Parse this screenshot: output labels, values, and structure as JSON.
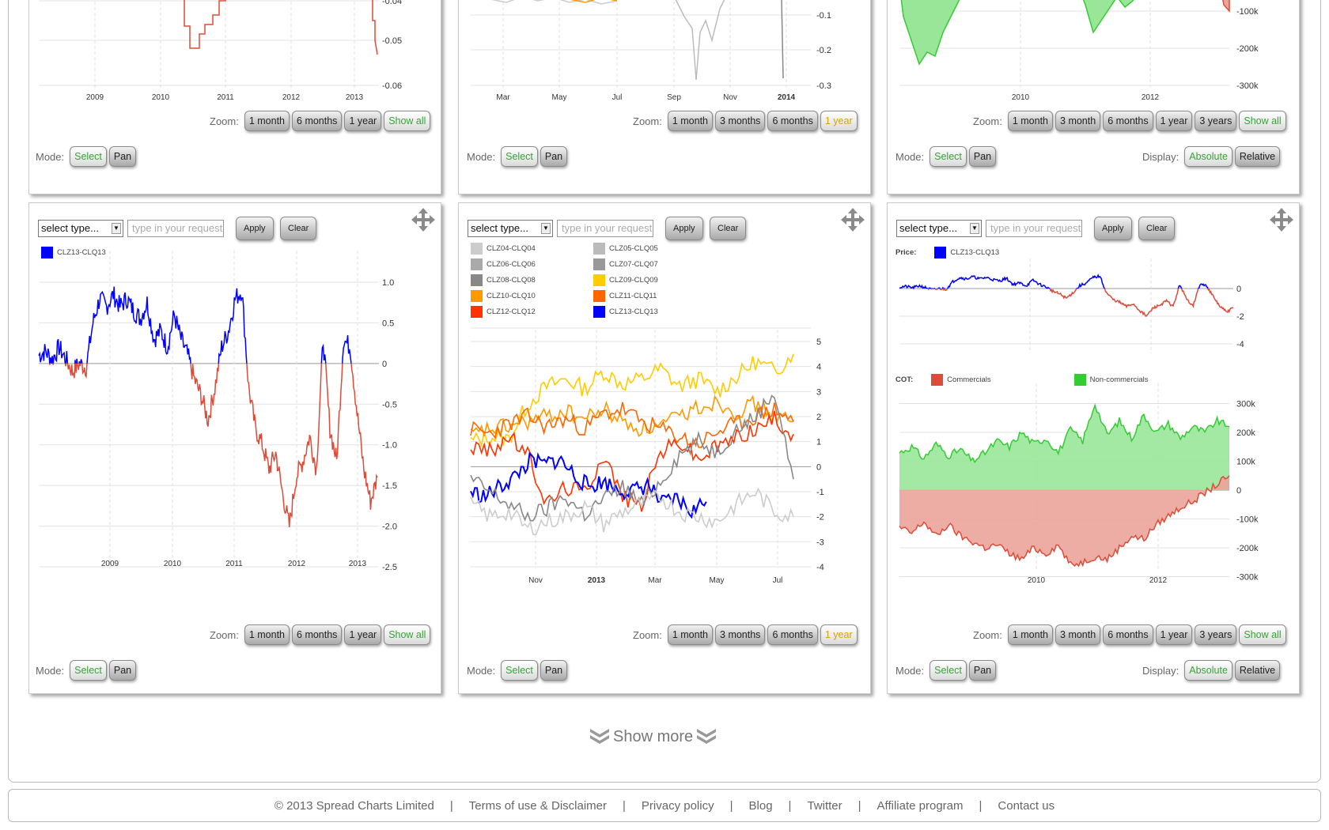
{
  "zoom_label": "Zoom:",
  "mode_label": "Mode:",
  "display_label": "Display:",
  "mode_buttons": [
    "Select",
    "Pan"
  ],
  "display_buttons": [
    "Absolute",
    "Relative"
  ],
  "zoom_sets": {
    "a": [
      "1 month",
      "6 months",
      "1 year",
      "Show all"
    ],
    "b": [
      "1 month",
      "3 months",
      "6 months",
      "1 year"
    ],
    "c": [
      "1 month",
      "3 month",
      "6 months",
      "1 year",
      "3 years",
      "Show all"
    ]
  },
  "select_type": "select type...",
  "input_placeholder": "type in your request",
  "apply_label": "Apply",
  "clear_label": "Clear",
  "top_row": {
    "left_y_ticks": [
      "-0.04",
      "-0.05",
      "-0.06"
    ],
    "left_x_ticks": [
      "2009",
      "2010",
      "2011",
      "2012",
      "2013"
    ],
    "mid_y_ticks": [
      "-0.1",
      "-0.2",
      "-0.3"
    ],
    "mid_x_ticks": [
      "Mar",
      "May",
      "Jul",
      "Sep",
      "Nov",
      "2014"
    ],
    "right_y_ticks": [
      "-100k",
      "-200k",
      "-300k"
    ],
    "right_x_ticks": [
      "2010",
      "2012"
    ]
  },
  "chart_left": {
    "legend": [
      "CLZ13-CLQ13"
    ],
    "y_ticks": [
      "1.0",
      "0.5",
      "0",
      "-0.5",
      "-1.0",
      "-1.5",
      "-2.0",
      "-2.5"
    ],
    "x_ticks": [
      "2009",
      "2010",
      "2011",
      "2012",
      "2013"
    ]
  },
  "chart_mid": {
    "legend": [
      "CLZ04-CLQ04",
      "CLZ05-CLQ05",
      "CLZ06-CLQ06",
      "CLZ07-CLQ07",
      "CLZ08-CLQ08",
      "CLZ09-CLQ09",
      "CLZ10-CLQ10",
      "CLZ11-CLQ11",
      "CLZ12-CLQ12",
      "CLZ13-CLQ13"
    ],
    "legend_colors": [
      "#cccccc",
      "#bbbbbb",
      "#aaaaaa",
      "#999999",
      "#888888",
      "#ffcc00",
      "#ff9900",
      "#ff6600",
      "#ff3300",
      "#0000ff"
    ],
    "y_ticks": [
      "5",
      "4",
      "3",
      "2",
      "1",
      "0",
      "-1",
      "-2",
      "-3",
      "-4"
    ],
    "x_ticks": [
      "Nov",
      "2013",
      "Mar",
      "May",
      "Jul"
    ]
  },
  "chart_right": {
    "price_label": "Price:",
    "price_legend": "CLZ13-CLQ13",
    "price_y_ticks": [
      "0",
      "-2",
      "-4"
    ],
    "cot_label": "COT:",
    "cot_legend": [
      "Commercials",
      "Non-commercials"
    ],
    "cot_y_ticks": [
      "300k",
      "200k",
      "100k",
      "0",
      "-100k",
      "-200k",
      "-300k"
    ],
    "x_ticks": [
      "2010",
      "2012"
    ]
  },
  "chart_data": [
    {
      "type": "line",
      "title": "",
      "series": [
        {
          "name": "CLZ13-CLQ13",
          "x_start": "2008-03",
          "x_end": "2013-08",
          "values": [
            0.1,
            0.15,
            0.05,
            0.2,
            0.05,
            -0.1,
            0.0,
            -0.05,
            0.5,
            0.8,
            0.7,
            0.85,
            0.7,
            0.8,
            0.65,
            0.55,
            0.75,
            0.3,
            0.4,
            0.2,
            0.6,
            0.3,
            0.1,
            -0.2,
            -0.4,
            -0.7,
            -0.3,
            0.2,
            0.4,
            0.8,
            0.9,
            -0.3,
            -0.8,
            -1.0,
            -1.3,
            -1.1,
            -1.6,
            -2.0,
            -1.4,
            -1.2,
            -0.9,
            -1.3,
            0.3,
            -0.8,
            -1.2,
            0.3,
            0.2,
            -0.6,
            -1.3,
            -1.7,
            -1.4
          ]
        }
      ],
      "ylim": [
        -2.5,
        1.0
      ],
      "xlabel": "",
      "ylabel": ""
    },
    {
      "type": "line",
      "title": "",
      "series": [
        {
          "name": "CLZ09-CLQ09",
          "values": [
            1.0,
            1.2,
            1.1,
            2.5,
            3.2,
            3.5,
            3.1,
            3.8,
            3.3,
            3.5,
            3.9,
            3.2,
            3.5,
            3.0,
            3.6,
            4.2,
            3.8,
            4.5
          ]
        },
        {
          "name": "CLZ10-CLQ10",
          "values": [
            1.2,
            1.5,
            1.6,
            1.8,
            2.0,
            2.2,
            1.9,
            2.3,
            1.8,
            1.5,
            1.6,
            2.0,
            2.4,
            2.6,
            2.2,
            2.5,
            2.0,
            1.8
          ]
        },
        {
          "name": "CLZ11-CLQ11",
          "values": [
            1.5,
            1.3,
            1.7,
            2.0,
            1.6,
            1.9,
            1.5,
            2.1,
            2.3,
            1.8,
            1.5,
            1.2,
            0.9,
            1.4,
            1.7,
            2.0,
            2.3,
            1.8
          ]
        },
        {
          "name": "CLZ12-CLQ12",
          "values": [
            0.8,
            0.6,
            1.2,
            0.5,
            -1.5,
            -0.8,
            -1.0,
            0.5,
            -1.2,
            -1.5,
            0.6,
            1.0,
            0.3,
            0.8,
            1.2,
            1.5,
            1.9,
            1.3
          ]
        },
        {
          "name": "CLZ13-CLQ13",
          "values": [
            -1.0,
            -1.2,
            -0.8,
            -0.4,
            0.2,
            0.1,
            0.3,
            -0.3,
            -0.8,
            -0.6,
            -0.9,
            -1.0,
            -0.7,
            -1.5,
            -1.3,
            -1.8,
            -1.4
          ]
        },
        {
          "name": "CLZ08-CLQ08",
          "values": [
            -0.5,
            -1.0,
            -1.5,
            -2.0,
            -1.7,
            -1.2,
            -1.9,
            -1.3,
            -0.8,
            -1.5,
            -0.6,
            0.5,
            1.0,
            0.6,
            1.5,
            2.0,
            3.0,
            -0.5
          ]
        },
        {
          "name": "CLZ04-CLQ04",
          "values": [
            -1.5,
            -2.0,
            -1.8,
            -2.5,
            -2.2,
            -2.0,
            -1.6,
            -2.3,
            -1.8,
            -1.5,
            -1.2,
            -1.8,
            -2.0,
            -2.2,
            -1.5,
            -1.0,
            -1.8,
            -2.0
          ]
        }
      ],
      "ylim": [
        -4,
        5
      ],
      "xlabel": "",
      "ylabel": ""
    },
    {
      "type": "area",
      "title": "",
      "series": [
        {
          "name": "Non-commercials",
          "values": [
            130,
            150,
            110,
            160,
            120,
            140,
            100,
            130,
            170,
            150,
            200,
            160,
            180,
            130,
            210,
            170,
            300,
            190,
            240,
            180,
            260,
            200,
            230,
            180,
            220,
            200,
            240,
            220
          ]
        },
        {
          "name": "Commercials",
          "values": [
            -130,
            -150,
            -110,
            -160,
            -120,
            -160,
            -180,
            -200,
            -190,
            -220,
            -240,
            -200,
            -220,
            -190,
            -260,
            -250,
            -230,
            -240,
            -200,
            -160,
            -170,
            -120,
            -90,
            -60,
            -40,
            -10,
            20,
            50
          ]
        }
      ],
      "ylim": [
        -300,
        300
      ],
      "xlabel": "",
      "ylabel": ""
    }
  ],
  "show_more": "Show more",
  "footer": {
    "copyright": "© 2013 Spread Charts Limited",
    "links": [
      "Terms of use & Disclaimer",
      "Privacy policy",
      "Blog",
      "Twitter",
      "Affiliate program",
      "Contact us"
    ]
  }
}
